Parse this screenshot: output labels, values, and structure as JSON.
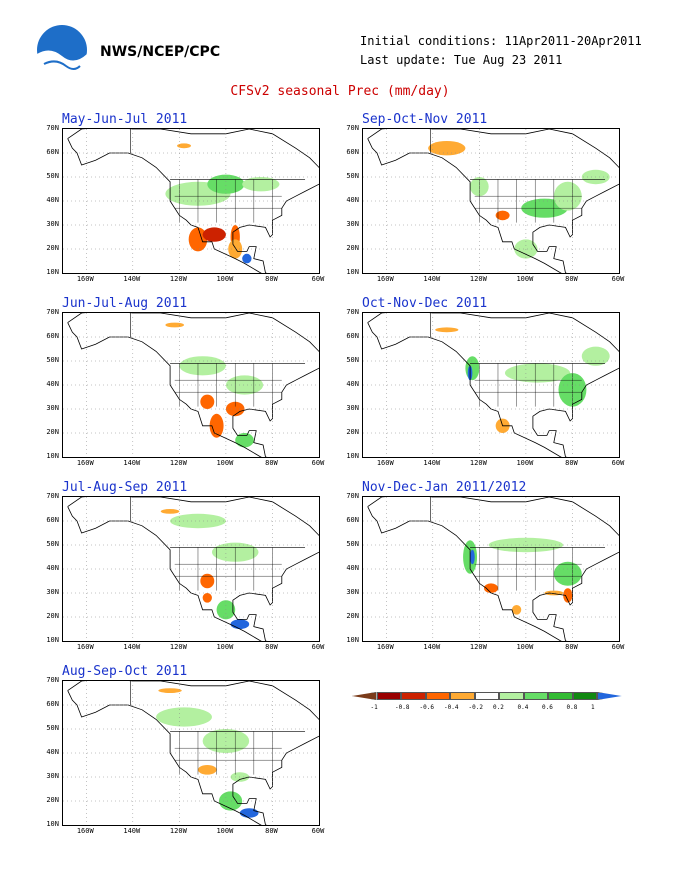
{
  "header": {
    "org": "NWS/NCEP/CPC",
    "initial_conditions": "Initial conditions: 11Apr2011-20Apr2011",
    "last_update": "Last update: Tue Aug 23 2011",
    "title": "CFSv2 seasonal Prec (mm/day)"
  },
  "panels": [
    {
      "title": "May-Jun-Jul 2011"
    },
    {
      "title": "Sep-Oct-Nov 2011"
    },
    {
      "title": "Jun-Jul-Aug 2011"
    },
    {
      "title": "Oct-Nov-Dec 2011"
    },
    {
      "title": "Jul-Aug-Sep 2011"
    },
    {
      "title": "Nov-Dec-Jan 2011/2012"
    },
    {
      "title": "Aug-Sep-Oct 2011"
    }
  ],
  "axes": {
    "lat_labels": [
      "70N",
      "60N",
      "50N",
      "40N",
      "30N",
      "20N",
      "10N"
    ],
    "lon_labels": [
      "160W",
      "140W",
      "120W",
      "100W",
      "80W",
      "60W"
    ]
  },
  "colorbar": {
    "colors": [
      "#7a3b1a",
      "#990000",
      "#cc2200",
      "#ff6600",
      "#ffaa33",
      "#ffffff",
      "#b3f0a0",
      "#66dd66",
      "#33bb33",
      "#118811",
      "#2266dd"
    ],
    "labels": [
      "-1",
      "-0.8",
      "-0.6",
      "-0.4",
      "-0.2",
      "0.2",
      "0.4",
      "0.6",
      "0.8",
      "1"
    ]
  },
  "colors": {
    "title": "#cc0000",
    "panel_title": "#1a33cc"
  }
}
